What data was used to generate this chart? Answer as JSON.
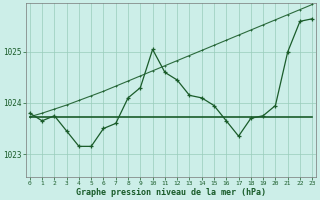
{
  "xlabel": "Graphe pression niveau de la mer (hPa)",
  "background_color": "#cceee8",
  "grid_color": "#99ccbb",
  "line_color": "#1a5c2a",
  "hours": [
    0,
    1,
    2,
    3,
    4,
    5,
    6,
    7,
    8,
    9,
    10,
    11,
    12,
    13,
    14,
    15,
    16,
    17,
    18,
    19,
    20,
    21,
    22,
    23
  ],
  "pressure_detailed": [
    1023.8,
    1023.65,
    1023.75,
    1023.45,
    1023.15,
    1023.15,
    1023.5,
    1023.6,
    1024.1,
    1024.3,
    1025.05,
    1024.6,
    1024.45,
    1024.15,
    1024.1,
    1023.95,
    1023.65,
    1023.35,
    1023.7,
    1023.75,
    1023.95,
    1025.0,
    1025.6,
    1025.65
  ],
  "pressure_rising": [
    1023.73,
    1023.8,
    1023.88,
    1023.96,
    1024.05,
    1024.14,
    1024.23,
    1024.33,
    1024.43,
    1024.53,
    1024.63,
    1024.73,
    1024.83,
    1024.93,
    1025.03,
    1025.13,
    1025.23,
    1025.33,
    1025.43,
    1025.53,
    1025.63,
    1025.73,
    1025.83,
    1025.93
  ],
  "pressure_flat": [
    1023.73,
    1023.73,
    1023.73,
    1023.73,
    1023.73,
    1023.73,
    1023.73,
    1023.73,
    1023.73,
    1023.73,
    1023.73,
    1023.73,
    1023.73,
    1023.73,
    1023.73,
    1023.73,
    1023.73,
    1023.73,
    1023.73,
    1023.73,
    1023.73,
    1023.73,
    1023.73,
    1023.73
  ],
  "ylim": [
    1022.55,
    1025.95
  ],
  "yticks": [
    1023,
    1024,
    1025
  ],
  "xticks": [
    0,
    1,
    2,
    3,
    4,
    5,
    6,
    7,
    8,
    9,
    10,
    11,
    12,
    13,
    14,
    15,
    16,
    17,
    18,
    19,
    20,
    21,
    22,
    23
  ],
  "xlim": [
    -0.3,
    23.3
  ]
}
